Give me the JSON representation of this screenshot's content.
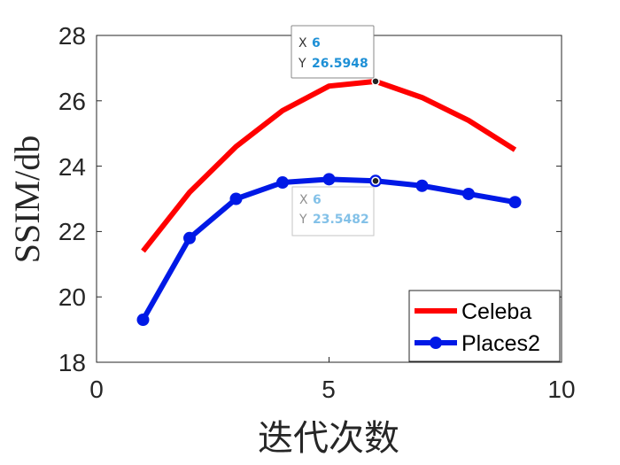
{
  "chart_data": {
    "type": "line",
    "title": "",
    "xlabel": "迭代次数",
    "ylabel": "SSIM/db",
    "xlim": [
      0,
      10
    ],
    "ylim": [
      18,
      28
    ],
    "xticks": [
      "0",
      "5",
      "10"
    ],
    "yticks": [
      "18",
      "20",
      "22",
      "24",
      "26",
      "28"
    ],
    "legend_position": "bottom-right",
    "grid": false,
    "series": [
      {
        "name": "Celeba",
        "color": "#ff0000",
        "marker": "none",
        "x": [
          1,
          2,
          3,
          4,
          5,
          6,
          7,
          8,
          9
        ],
        "y": [
          21.4,
          23.2,
          24.6,
          25.7,
          26.45,
          26.5948,
          26.1,
          25.4,
          24.5
        ]
      },
      {
        "name": "Places2",
        "color": "#0019e6",
        "marker": "circle",
        "x": [
          1,
          2,
          3,
          4,
          5,
          6,
          7,
          8,
          9
        ],
        "y": [
          19.3,
          21.8,
          23.0,
          23.5,
          23.6,
          23.5482,
          23.4,
          23.15,
          22.9
        ]
      }
    ],
    "datatips": [
      {
        "x_label": "X",
        "x_value": "6",
        "y_label": "Y",
        "y_value": "26.5948"
      },
      {
        "x_label": "X",
        "x_value": "6",
        "y_label": "Y",
        "y_value": "23.5482"
      }
    ]
  }
}
